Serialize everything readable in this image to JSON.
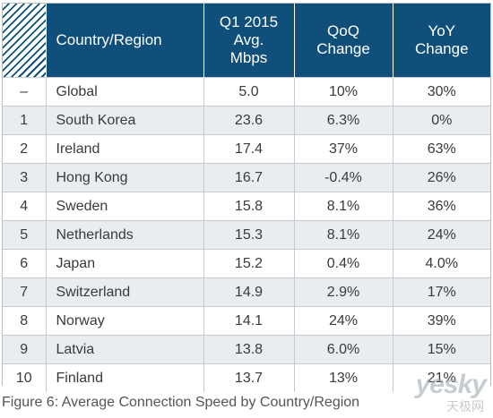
{
  "chart_data": {
    "type": "table",
    "title": "",
    "columns": [
      "",
      "Country/Region",
      "Q1 2015 Avg. Mbps",
      "QoQ Change",
      "YoY Change"
    ],
    "header_lines": {
      "rank": "",
      "country": "Country/Region",
      "speed_l1": "Q1 2015",
      "speed_l2": "Avg.",
      "speed_l3": "Mbps",
      "qoq_l1": "QoQ",
      "qoq_l2": "Change",
      "yoy_l1": "YoY",
      "yoy_l2": "Change"
    },
    "rows": [
      {
        "rank": "–",
        "country": "Global",
        "speed": "5.0",
        "qoq": "10%",
        "yoy": "30%"
      },
      {
        "rank": "1",
        "country": "South Korea",
        "speed": "23.6",
        "qoq": "6.3%",
        "yoy": "0%"
      },
      {
        "rank": "2",
        "country": "Ireland",
        "speed": "17.4",
        "qoq": "37%",
        "yoy": "63%"
      },
      {
        "rank": "3",
        "country": "Hong Kong",
        "speed": "16.7",
        "qoq": "-0.4%",
        "yoy": "26%"
      },
      {
        "rank": "4",
        "country": "Sweden",
        "speed": "15.8",
        "qoq": "8.1%",
        "yoy": "36%"
      },
      {
        "rank": "5",
        "country": "Netherlands",
        "speed": "15.3",
        "qoq": "8.1%",
        "yoy": "24%"
      },
      {
        "rank": "6",
        "country": "Japan",
        "speed": "15.2",
        "qoq": "0.4%",
        "yoy": "4.0%"
      },
      {
        "rank": "7",
        "country": "Switzerland",
        "speed": "14.9",
        "qoq": "2.9%",
        "yoy": "17%"
      },
      {
        "rank": "8",
        "country": "Norway",
        "speed": "14.1",
        "qoq": "24%",
        "yoy": "39%"
      },
      {
        "rank": "9",
        "country": "Latvia",
        "speed": "13.8",
        "qoq": "6.0%",
        "yoy": "15%"
      },
      {
        "rank": "10",
        "country": "Finland",
        "speed": "13.7",
        "qoq": "13%",
        "yoy": "21%"
      }
    ]
  },
  "caption": "Figure 6: Average Connection Speed by Country/Region",
  "watermark": {
    "top": "yesky",
    "bottom": "天极网"
  },
  "colors": {
    "header": "#0f4f79",
    "stripe": "#e9edf0",
    "grid": "#c4cacf"
  }
}
